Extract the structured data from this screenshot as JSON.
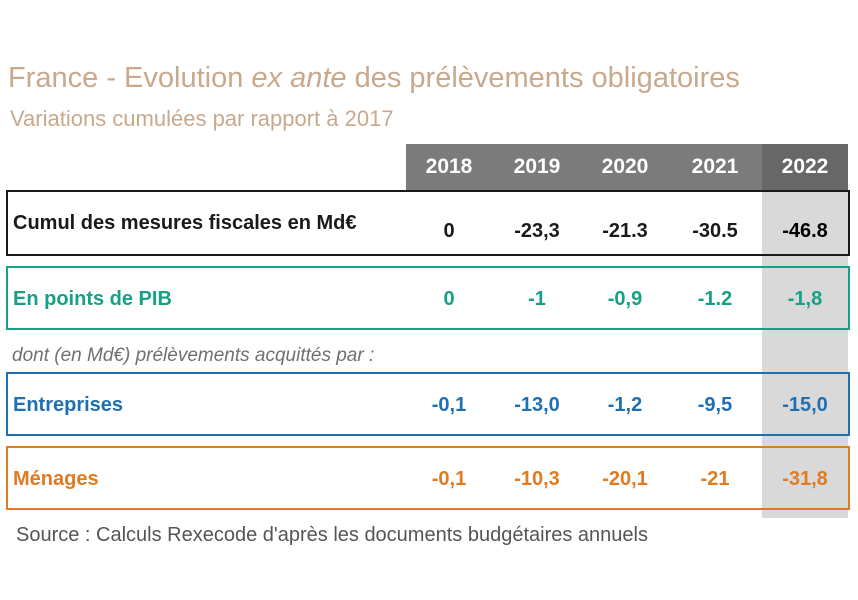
{
  "title": {
    "pre": "France - Evolution ",
    "em": "ex ante",
    "post": " des prélèvements obligatoires"
  },
  "subtitle": "Variations cumulées  par rapport à 2017",
  "colors": {
    "cumul": "#1a1a1a",
    "pib": "#16a085",
    "entreprises": "#1f6fb2",
    "menages": "#e07b22",
    "header": "#7b7b7b",
    "highlight": "#d9d9d9"
  },
  "chart_data": {
    "type": "table",
    "columns": [
      "2018",
      "2019",
      "2020",
      "2021",
      "2022"
    ],
    "rows": [
      {
        "key": "cumul",
        "label": "Cumul des mesures fiscales en Md€",
        "values": [
          "0",
          "-23,3",
          "-21.3",
          "-30.5",
          "-46.8"
        ]
      },
      {
        "key": "pib",
        "label": "En points de PIB",
        "values": [
          "0",
          "-1",
          "-0,9",
          "-1.2",
          "-1,8"
        ]
      },
      {
        "key": "entreprises",
        "label": "Entreprises",
        "values": [
          "-0,1",
          "-13,0",
          "-1,2",
          "-9,5",
          "-15,0"
        ]
      },
      {
        "key": "menages",
        "label": "Ménages",
        "values": [
          "-0,1",
          "-10,3",
          "-20,1",
          "-21",
          "-31,8"
        ]
      }
    ],
    "note": "dont (en Md€) prélèvements acquittés par :"
  },
  "source": "Source : Calculs Rexecode d'après les documents budgétaires annuels"
}
